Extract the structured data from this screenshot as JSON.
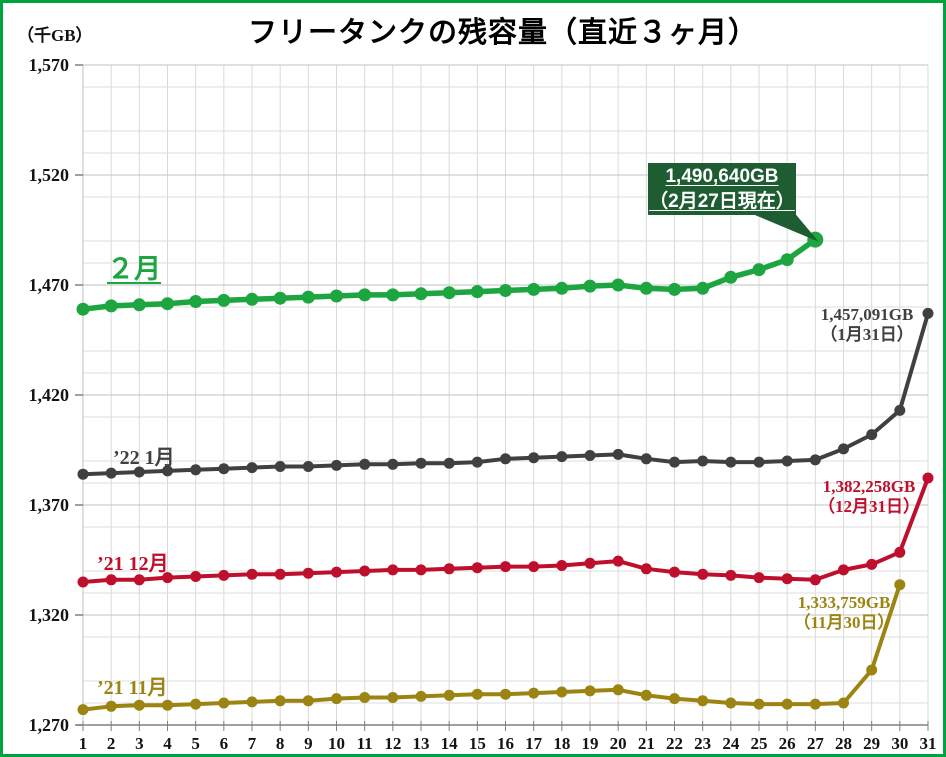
{
  "frame": {
    "border_color": "#00A33E",
    "background": "#FFFFFF"
  },
  "header": {
    "title": "フリータンクの残容量（直近３ヶ月）",
    "unit_label": "（千GB）"
  },
  "chart_data": {
    "type": "line",
    "title": "フリータンクの残容量（直近３ヶ月）",
    "ylabel": "（千GB）",
    "ylim": [
      1270,
      1570
    ],
    "yticks": [
      1270,
      1320,
      1370,
      1420,
      1470,
      1520,
      1570
    ],
    "ytick_step": 50,
    "minor_grid_step": 10,
    "grid": true,
    "legend_position": "inline-labels",
    "x_days": [
      1,
      2,
      3,
      4,
      5,
      6,
      7,
      8,
      9,
      10,
      11,
      12,
      13,
      14,
      15,
      16,
      17,
      18,
      19,
      20,
      21,
      22,
      23,
      24,
      25,
      26,
      27,
      28,
      29,
      30,
      31
    ],
    "series": [
      {
        "name": "2月",
        "label": "２月",
        "color": "#1DA540",
        "start_day": 1,
        "line_width": 5.5,
        "marker_radius": 6.5,
        "big_end_marker": true,
        "values": [
          1459,
          1460.5,
          1461,
          1461.5,
          1462.5,
          1463,
          1463.5,
          1464,
          1464.5,
          1465,
          1465.5,
          1465.5,
          1466,
          1466.5,
          1467,
          1467.5,
          1468,
          1468.5,
          1469.5,
          1470,
          1468.5,
          1468,
          1468.5,
          1473.5,
          1477,
          1481.5,
          1490.64
        ]
      },
      {
        "name": "’22 1月",
        "label": "’22 1月",
        "color": "#404040",
        "start_day": 1,
        "line_width": 4,
        "marker_radius": 5.5,
        "big_end_marker": false,
        "values": [
          1384,
          1384.5,
          1385,
          1385.5,
          1386,
          1386.5,
          1387,
          1387.5,
          1387.5,
          1388,
          1388.5,
          1388.5,
          1389,
          1389,
          1389.5,
          1391,
          1391.5,
          1392,
          1392.5,
          1393,
          1391,
          1389.5,
          1390,
          1389.5,
          1389.5,
          1390,
          1390.5,
          1395.5,
          1402,
          1413,
          1457.091
        ]
      },
      {
        "name": "’21 12月",
        "label": "’21 12月",
        "color": "#BE0F2D",
        "start_day": 1,
        "line_width": 4,
        "marker_radius": 5.5,
        "big_end_marker": false,
        "values": [
          1335,
          1336,
          1336,
          1337,
          1337.5,
          1338,
          1338.5,
          1338.5,
          1339,
          1339.5,
          1340,
          1340.5,
          1340.5,
          1341,
          1341.5,
          1342,
          1342,
          1342.5,
          1343.5,
          1344.5,
          1341,
          1339.5,
          1338.5,
          1338,
          1337,
          1336.5,
          1336,
          1340.5,
          1343,
          1348.5,
          1382.258
        ]
      },
      {
        "name": "’21 11月",
        "label": "’21 11月",
        "color": "#9C8412",
        "start_day": 1,
        "line_width": 4,
        "marker_radius": 5.5,
        "big_end_marker": false,
        "values": [
          1277,
          1278.5,
          1279,
          1279,
          1279.5,
          1280,
          1280.5,
          1281,
          1281,
          1282,
          1282.5,
          1282.5,
          1283,
          1283.5,
          1284,
          1284,
          1284.5,
          1285,
          1285.5,
          1286,
          1283.5,
          1282,
          1281,
          1280,
          1279.5,
          1279.5,
          1279.5,
          1280,
          1295,
          1333.759
        ]
      }
    ]
  },
  "annotations": {
    "callout": {
      "line1": "1,490,640GB",
      "line2": "（2月27日現在）",
      "bg_color": "#1E5C32",
      "text_color": "#FFFFFF"
    },
    "end_labels": [
      {
        "line1": "1,457,091GB",
        "line2": "（1月31日）",
        "color": "#404040"
      },
      {
        "line1": "1,382,258GB",
        "line2": "（12月31日）",
        "color": "#BE0F2D"
      },
      {
        "line1": "1,333,759GB",
        "line2": "（11月30日）",
        "color": "#9C8412"
      }
    ]
  }
}
